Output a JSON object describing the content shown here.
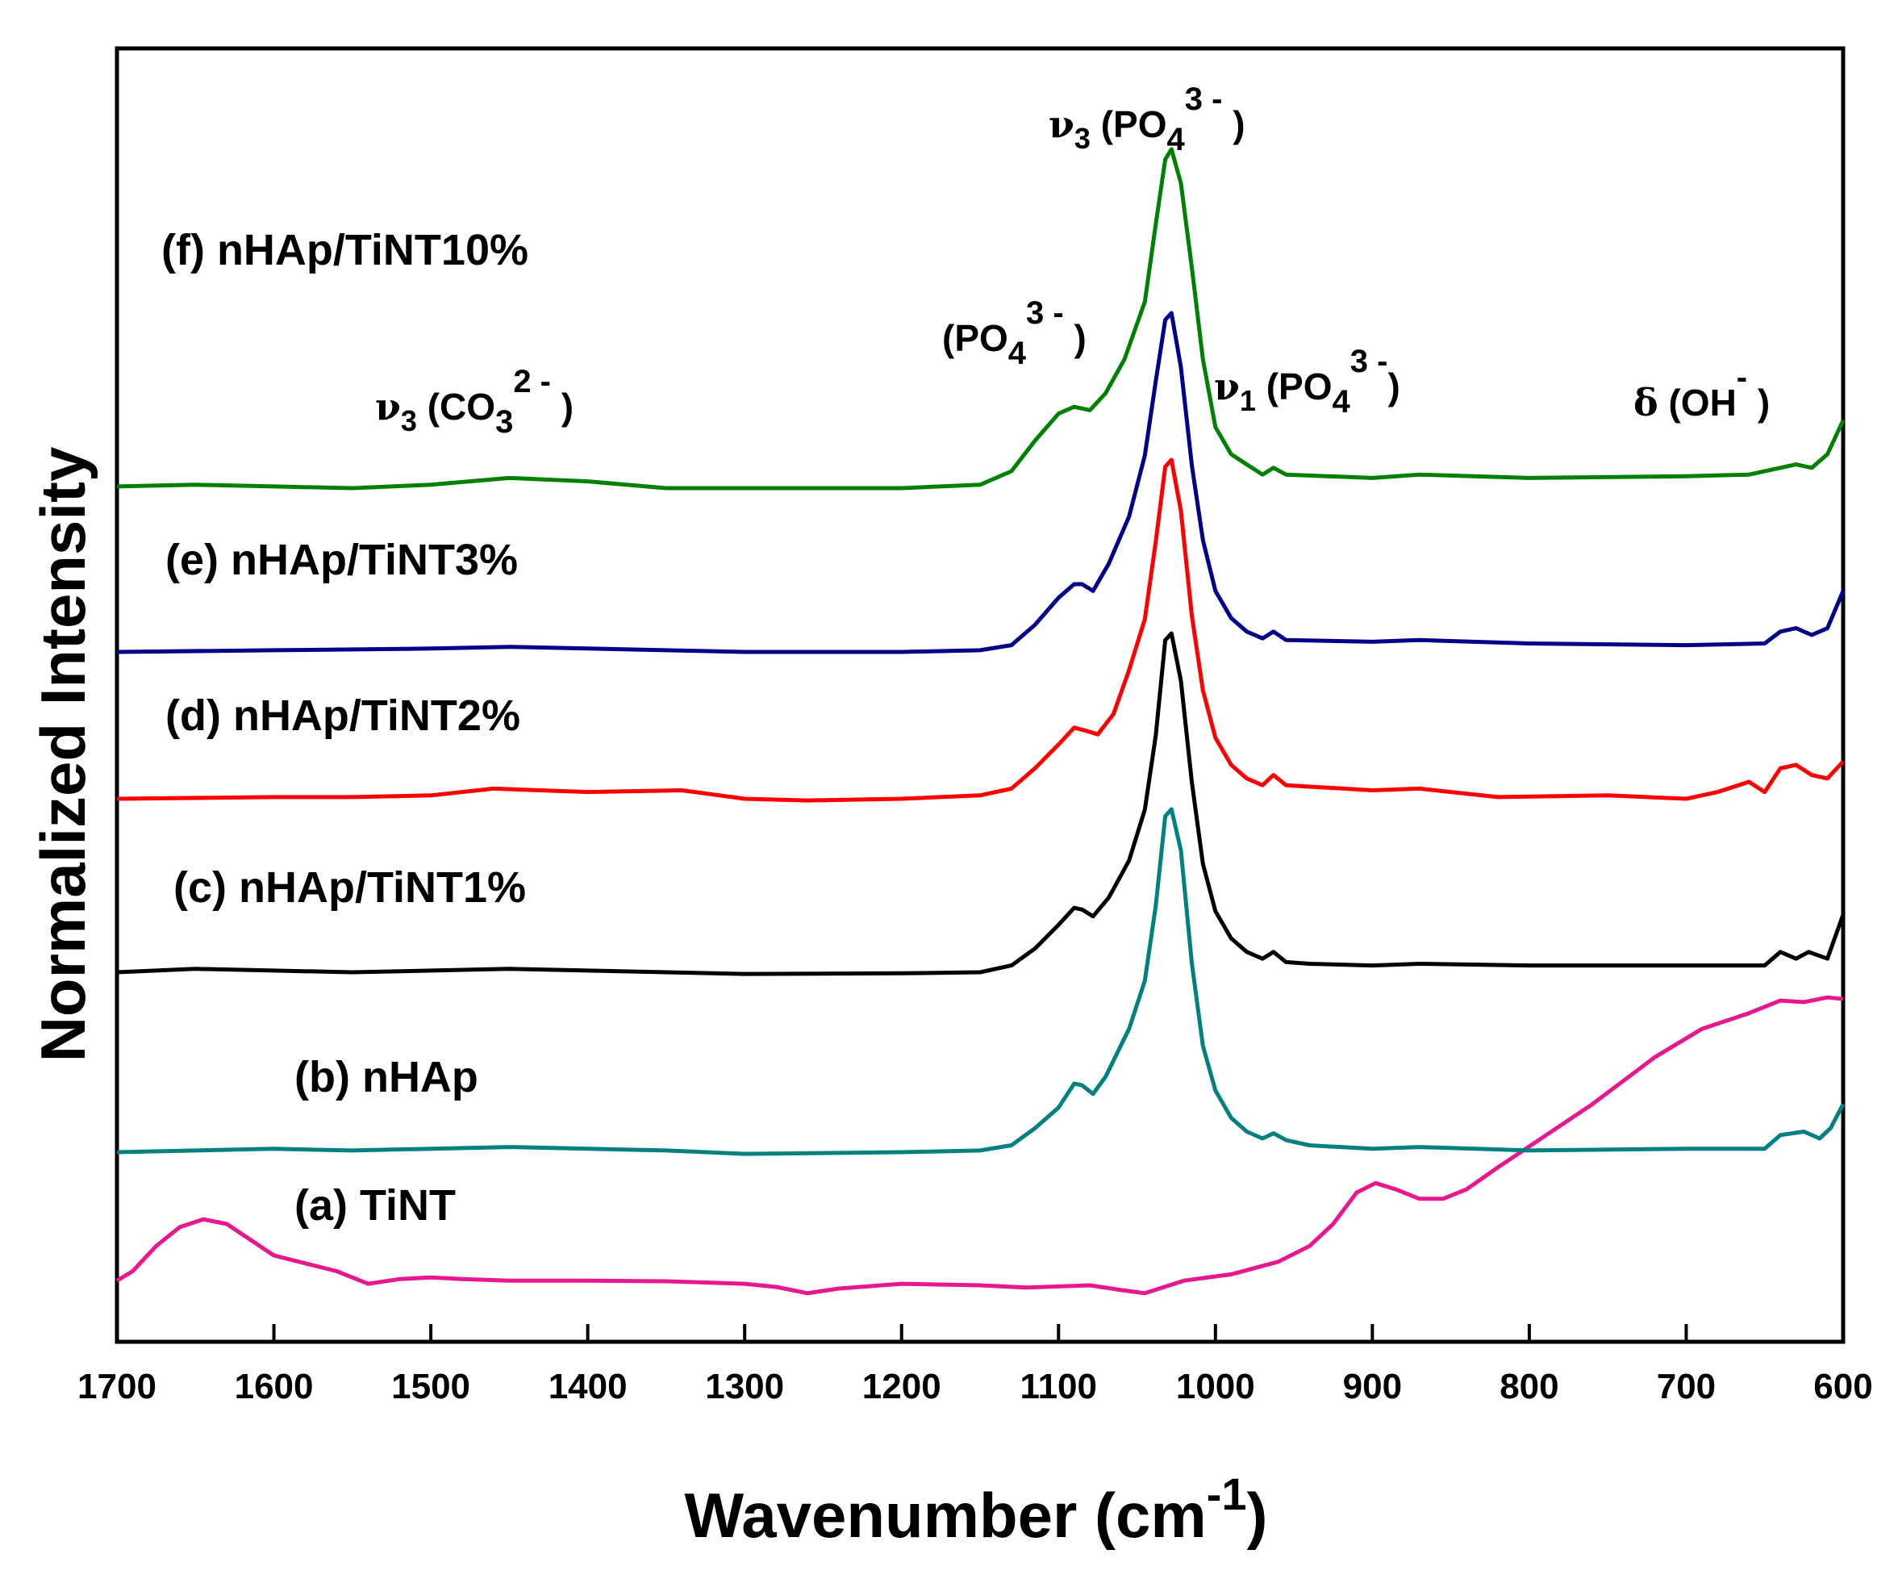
{
  "chart_data": {
    "type": "line",
    "title": "",
    "xlabel": "Wavenumber (cm",
    "xlabel_sup": "-1",
    "xlabel_close": ")",
    "ylabel": "Normalized Intensity",
    "xlim": [
      1700,
      600
    ],
    "x_reversed": true,
    "xticks": [
      1700,
      1600,
      1500,
      1400,
      1300,
      1200,
      1100,
      1000,
      900,
      800,
      700,
      600
    ],
    "yticks_shown": false,
    "grid": false,
    "legend": "none (series labelled directly on plot)",
    "series": [
      {
        "name": "(a) TiNT",
        "color": "#e8168f",
        "points": [
          [
            1700,
            0.02
          ],
          [
            1690,
            0.05
          ],
          [
            1675,
            0.13
          ],
          [
            1660,
            0.19
          ],
          [
            1645,
            0.215
          ],
          [
            1630,
            0.2
          ],
          [
            1615,
            0.15
          ],
          [
            1600,
            0.1
          ],
          [
            1580,
            0.075
          ],
          [
            1560,
            0.05
          ],
          [
            1540,
            0.01
          ],
          [
            1520,
            0.025
          ],
          [
            1500,
            0.03
          ],
          [
            1480,
            0.025
          ],
          [
            1450,
            0.02
          ],
          [
            1400,
            0.02
          ],
          [
            1350,
            0.018
          ],
          [
            1300,
            0.01
          ],
          [
            1280,
            0.0
          ],
          [
            1260,
            -0.02
          ],
          [
            1240,
            -0.005
          ],
          [
            1200,
            0.01
          ],
          [
            1150,
            0.005
          ],
          [
            1120,
            -0.002
          ],
          [
            1080,
            0.005
          ],
          [
            1060,
            -0.01
          ],
          [
            1045,
            -0.02
          ],
          [
            1020,
            0.02
          ],
          [
            990,
            0.04
          ],
          [
            960,
            0.08
          ],
          [
            940,
            0.13
          ],
          [
            925,
            0.2
          ],
          [
            910,
            0.3
          ],
          [
            898,
            0.33
          ],
          [
            885,
            0.31
          ],
          [
            870,
            0.28
          ],
          [
            855,
            0.28
          ],
          [
            840,
            0.31
          ],
          [
            820,
            0.38
          ],
          [
            790,
            0.48
          ],
          [
            760,
            0.58
          ],
          [
            720,
            0.73
          ],
          [
            690,
            0.82
          ],
          [
            660,
            0.87
          ],
          [
            640,
            0.91
          ],
          [
            625,
            0.905
          ],
          [
            610,
            0.92
          ],
          [
            600,
            0.915
          ]
        ]
      },
      {
        "name": "(b) nHAp",
        "color": "#008080",
        "points": [
          [
            1700,
            0.0
          ],
          [
            1600,
            0.01
          ],
          [
            1550,
            0.005
          ],
          [
            1450,
            0.015
          ],
          [
            1350,
            0.005
          ],
          [
            1300,
            -0.005
          ],
          [
            1200,
            0.0
          ],
          [
            1150,
            0.005
          ],
          [
            1130,
            0.02
          ],
          [
            1115,
            0.07
          ],
          [
            1100,
            0.13
          ],
          [
            1090,
            0.2
          ],
          [
            1085,
            0.195
          ],
          [
            1078,
            0.17
          ],
          [
            1070,
            0.22
          ],
          [
            1055,
            0.36
          ],
          [
            1045,
            0.5
          ],
          [
            1038,
            0.72
          ],
          [
            1032,
            0.98
          ],
          [
            1028,
            1.0
          ],
          [
            1022,
            0.88
          ],
          [
            1015,
            0.55
          ],
          [
            1008,
            0.31
          ],
          [
            1000,
            0.18
          ],
          [
            990,
            0.1
          ],
          [
            980,
            0.06
          ],
          [
            970,
            0.04
          ],
          [
            963,
            0.055
          ],
          [
            955,
            0.035
          ],
          [
            940,
            0.02
          ],
          [
            900,
            0.01
          ],
          [
            870,
            0.015
          ],
          [
            800,
            0.005
          ],
          [
            700,
            0.01
          ],
          [
            650,
            0.01
          ],
          [
            640,
            0.05
          ],
          [
            625,
            0.06
          ],
          [
            615,
            0.04
          ],
          [
            608,
            0.07
          ],
          [
            600,
            0.14
          ]
        ]
      },
      {
        "name": "(c) nHAp/TiNT1%",
        "color": "#000000",
        "points": [
          [
            1700,
            0.0
          ],
          [
            1650,
            0.01
          ],
          [
            1600,
            0.005
          ],
          [
            1550,
            0.0
          ],
          [
            1450,
            0.01
          ],
          [
            1400,
            0.005
          ],
          [
            1300,
            -0.005
          ],
          [
            1200,
            -0.003
          ],
          [
            1150,
            0.0
          ],
          [
            1130,
            0.02
          ],
          [
            1115,
            0.07
          ],
          [
            1100,
            0.14
          ],
          [
            1090,
            0.19
          ],
          [
            1085,
            0.185
          ],
          [
            1078,
            0.165
          ],
          [
            1068,
            0.22
          ],
          [
            1055,
            0.33
          ],
          [
            1045,
            0.48
          ],
          [
            1038,
            0.7
          ],
          [
            1032,
            0.98
          ],
          [
            1028,
            1.0
          ],
          [
            1022,
            0.86
          ],
          [
            1015,
            0.56
          ],
          [
            1008,
            0.32
          ],
          [
            1000,
            0.18
          ],
          [
            990,
            0.1
          ],
          [
            980,
            0.06
          ],
          [
            970,
            0.04
          ],
          [
            963,
            0.06
          ],
          [
            955,
            0.03
          ],
          [
            940,
            0.025
          ],
          [
            900,
            0.02
          ],
          [
            870,
            0.025
          ],
          [
            800,
            0.02
          ],
          [
            700,
            0.02
          ],
          [
            650,
            0.02
          ],
          [
            640,
            0.06
          ],
          [
            630,
            0.04
          ],
          [
            622,
            0.06
          ],
          [
            610,
            0.04
          ],
          [
            600,
            0.17
          ]
        ]
      },
      {
        "name": "(d) nHAp/TiNT2%",
        "color": "#ff0000",
        "points": [
          [
            1700,
            0.0
          ],
          [
            1600,
            0.005
          ],
          [
            1550,
            0.005
          ],
          [
            1500,
            0.01
          ],
          [
            1460,
            0.03
          ],
          [
            1400,
            0.02
          ],
          [
            1340,
            0.025
          ],
          [
            1300,
            0.0
          ],
          [
            1260,
            -0.005
          ],
          [
            1200,
            0.0
          ],
          [
            1150,
            0.01
          ],
          [
            1130,
            0.03
          ],
          [
            1115,
            0.09
          ],
          [
            1100,
            0.16
          ],
          [
            1090,
            0.21
          ],
          [
            1082,
            0.2
          ],
          [
            1075,
            0.19
          ],
          [
            1065,
            0.25
          ],
          [
            1055,
            0.38
          ],
          [
            1045,
            0.53
          ],
          [
            1038,
            0.76
          ],
          [
            1032,
            0.98
          ],
          [
            1028,
            1.0
          ],
          [
            1022,
            0.85
          ],
          [
            1015,
            0.54
          ],
          [
            1008,
            0.32
          ],
          [
            1000,
            0.18
          ],
          [
            990,
            0.1
          ],
          [
            980,
            0.06
          ],
          [
            970,
            0.04
          ],
          [
            963,
            0.07
          ],
          [
            955,
            0.04
          ],
          [
            900,
            0.025
          ],
          [
            870,
            0.03
          ],
          [
            820,
            0.005
          ],
          [
            750,
            0.01
          ],
          [
            700,
            0.0
          ],
          [
            680,
            0.02
          ],
          [
            660,
            0.05
          ],
          [
            650,
            0.02
          ],
          [
            640,
            0.09
          ],
          [
            630,
            0.1
          ],
          [
            620,
            0.07
          ],
          [
            610,
            0.06
          ],
          [
            600,
            0.11
          ]
        ]
      },
      {
        "name": "(e) nHAp/TiNT3%",
        "color": "#00008b",
        "points": [
          [
            1700,
            0.0
          ],
          [
            1600,
            0.005
          ],
          [
            1500,
            0.01
          ],
          [
            1450,
            0.015
          ],
          [
            1400,
            0.01
          ],
          [
            1300,
            0.0
          ],
          [
            1200,
            0.0
          ],
          [
            1150,
            0.005
          ],
          [
            1130,
            0.02
          ],
          [
            1115,
            0.08
          ],
          [
            1100,
            0.16
          ],
          [
            1090,
            0.2
          ],
          [
            1085,
            0.2
          ],
          [
            1078,
            0.18
          ],
          [
            1068,
            0.26
          ],
          [
            1055,
            0.4
          ],
          [
            1045,
            0.58
          ],
          [
            1038,
            0.8
          ],
          [
            1032,
            0.98
          ],
          [
            1028,
            1.0
          ],
          [
            1022,
            0.84
          ],
          [
            1015,
            0.55
          ],
          [
            1008,
            0.33
          ],
          [
            1000,
            0.18
          ],
          [
            990,
            0.1
          ],
          [
            980,
            0.06
          ],
          [
            970,
            0.04
          ],
          [
            963,
            0.06
          ],
          [
            955,
            0.035
          ],
          [
            900,
            0.03
          ],
          [
            870,
            0.035
          ],
          [
            800,
            0.025
          ],
          [
            700,
            0.02
          ],
          [
            650,
            0.025
          ],
          [
            640,
            0.06
          ],
          [
            630,
            0.07
          ],
          [
            620,
            0.05
          ],
          [
            610,
            0.07
          ],
          [
            600,
            0.18
          ]
        ]
      },
      {
        "name": "(f) nHAp/TiNT10%",
        "color": "#008000",
        "points": [
          [
            1700,
            0.005
          ],
          [
            1650,
            0.01
          ],
          [
            1600,
            0.005
          ],
          [
            1550,
            0.0
          ],
          [
            1500,
            0.01
          ],
          [
            1450,
            0.03
          ],
          [
            1400,
            0.02
          ],
          [
            1350,
            0.0
          ],
          [
            1300,
            0.0
          ],
          [
            1200,
            0.0
          ],
          [
            1150,
            0.01
          ],
          [
            1130,
            0.05
          ],
          [
            1115,
            0.14
          ],
          [
            1100,
            0.22
          ],
          [
            1090,
            0.24
          ],
          [
            1080,
            0.23
          ],
          [
            1070,
            0.28
          ],
          [
            1058,
            0.38
          ],
          [
            1045,
            0.55
          ],
          [
            1038,
            0.78
          ],
          [
            1032,
            0.97
          ],
          [
            1028,
            1.0
          ],
          [
            1022,
            0.9
          ],
          [
            1015,
            0.65
          ],
          [
            1008,
            0.38
          ],
          [
            1000,
            0.18
          ],
          [
            990,
            0.1
          ],
          [
            980,
            0.07
          ],
          [
            970,
            0.04
          ],
          [
            963,
            0.06
          ],
          [
            955,
            0.04
          ],
          [
            900,
            0.03
          ],
          [
            870,
            0.04
          ],
          [
            800,
            0.03
          ],
          [
            700,
            0.035
          ],
          [
            660,
            0.04
          ],
          [
            640,
            0.06
          ],
          [
            630,
            0.07
          ],
          [
            620,
            0.06
          ],
          [
            610,
            0.1
          ],
          [
            600,
            0.2
          ]
        ]
      }
    ],
    "annotations": [
      {
        "symbol": "ν",
        "sub": "3",
        "text": " (CO",
        "sub2": "3",
        "sup2": "2 -",
        "close": " )"
      },
      {
        "symbol": "",
        "sub": "",
        "text": "(PO",
        "sub2": "4",
        "sup2": "3 -",
        "close": " )"
      },
      {
        "symbol": "ν",
        "sub": "3",
        "text": " (PO",
        "sub2": "4",
        "sup2": "3 -",
        "close": " )"
      },
      {
        "symbol": "ν",
        "sub": "1",
        "text": " (PO",
        "sub2": "4",
        "sup2": "3 -",
        "close": ")"
      },
      {
        "symbol": "δ",
        "sub": "",
        "text": " (OH",
        "sub2": "",
        "sup2": "-",
        "close": " )"
      }
    ]
  }
}
